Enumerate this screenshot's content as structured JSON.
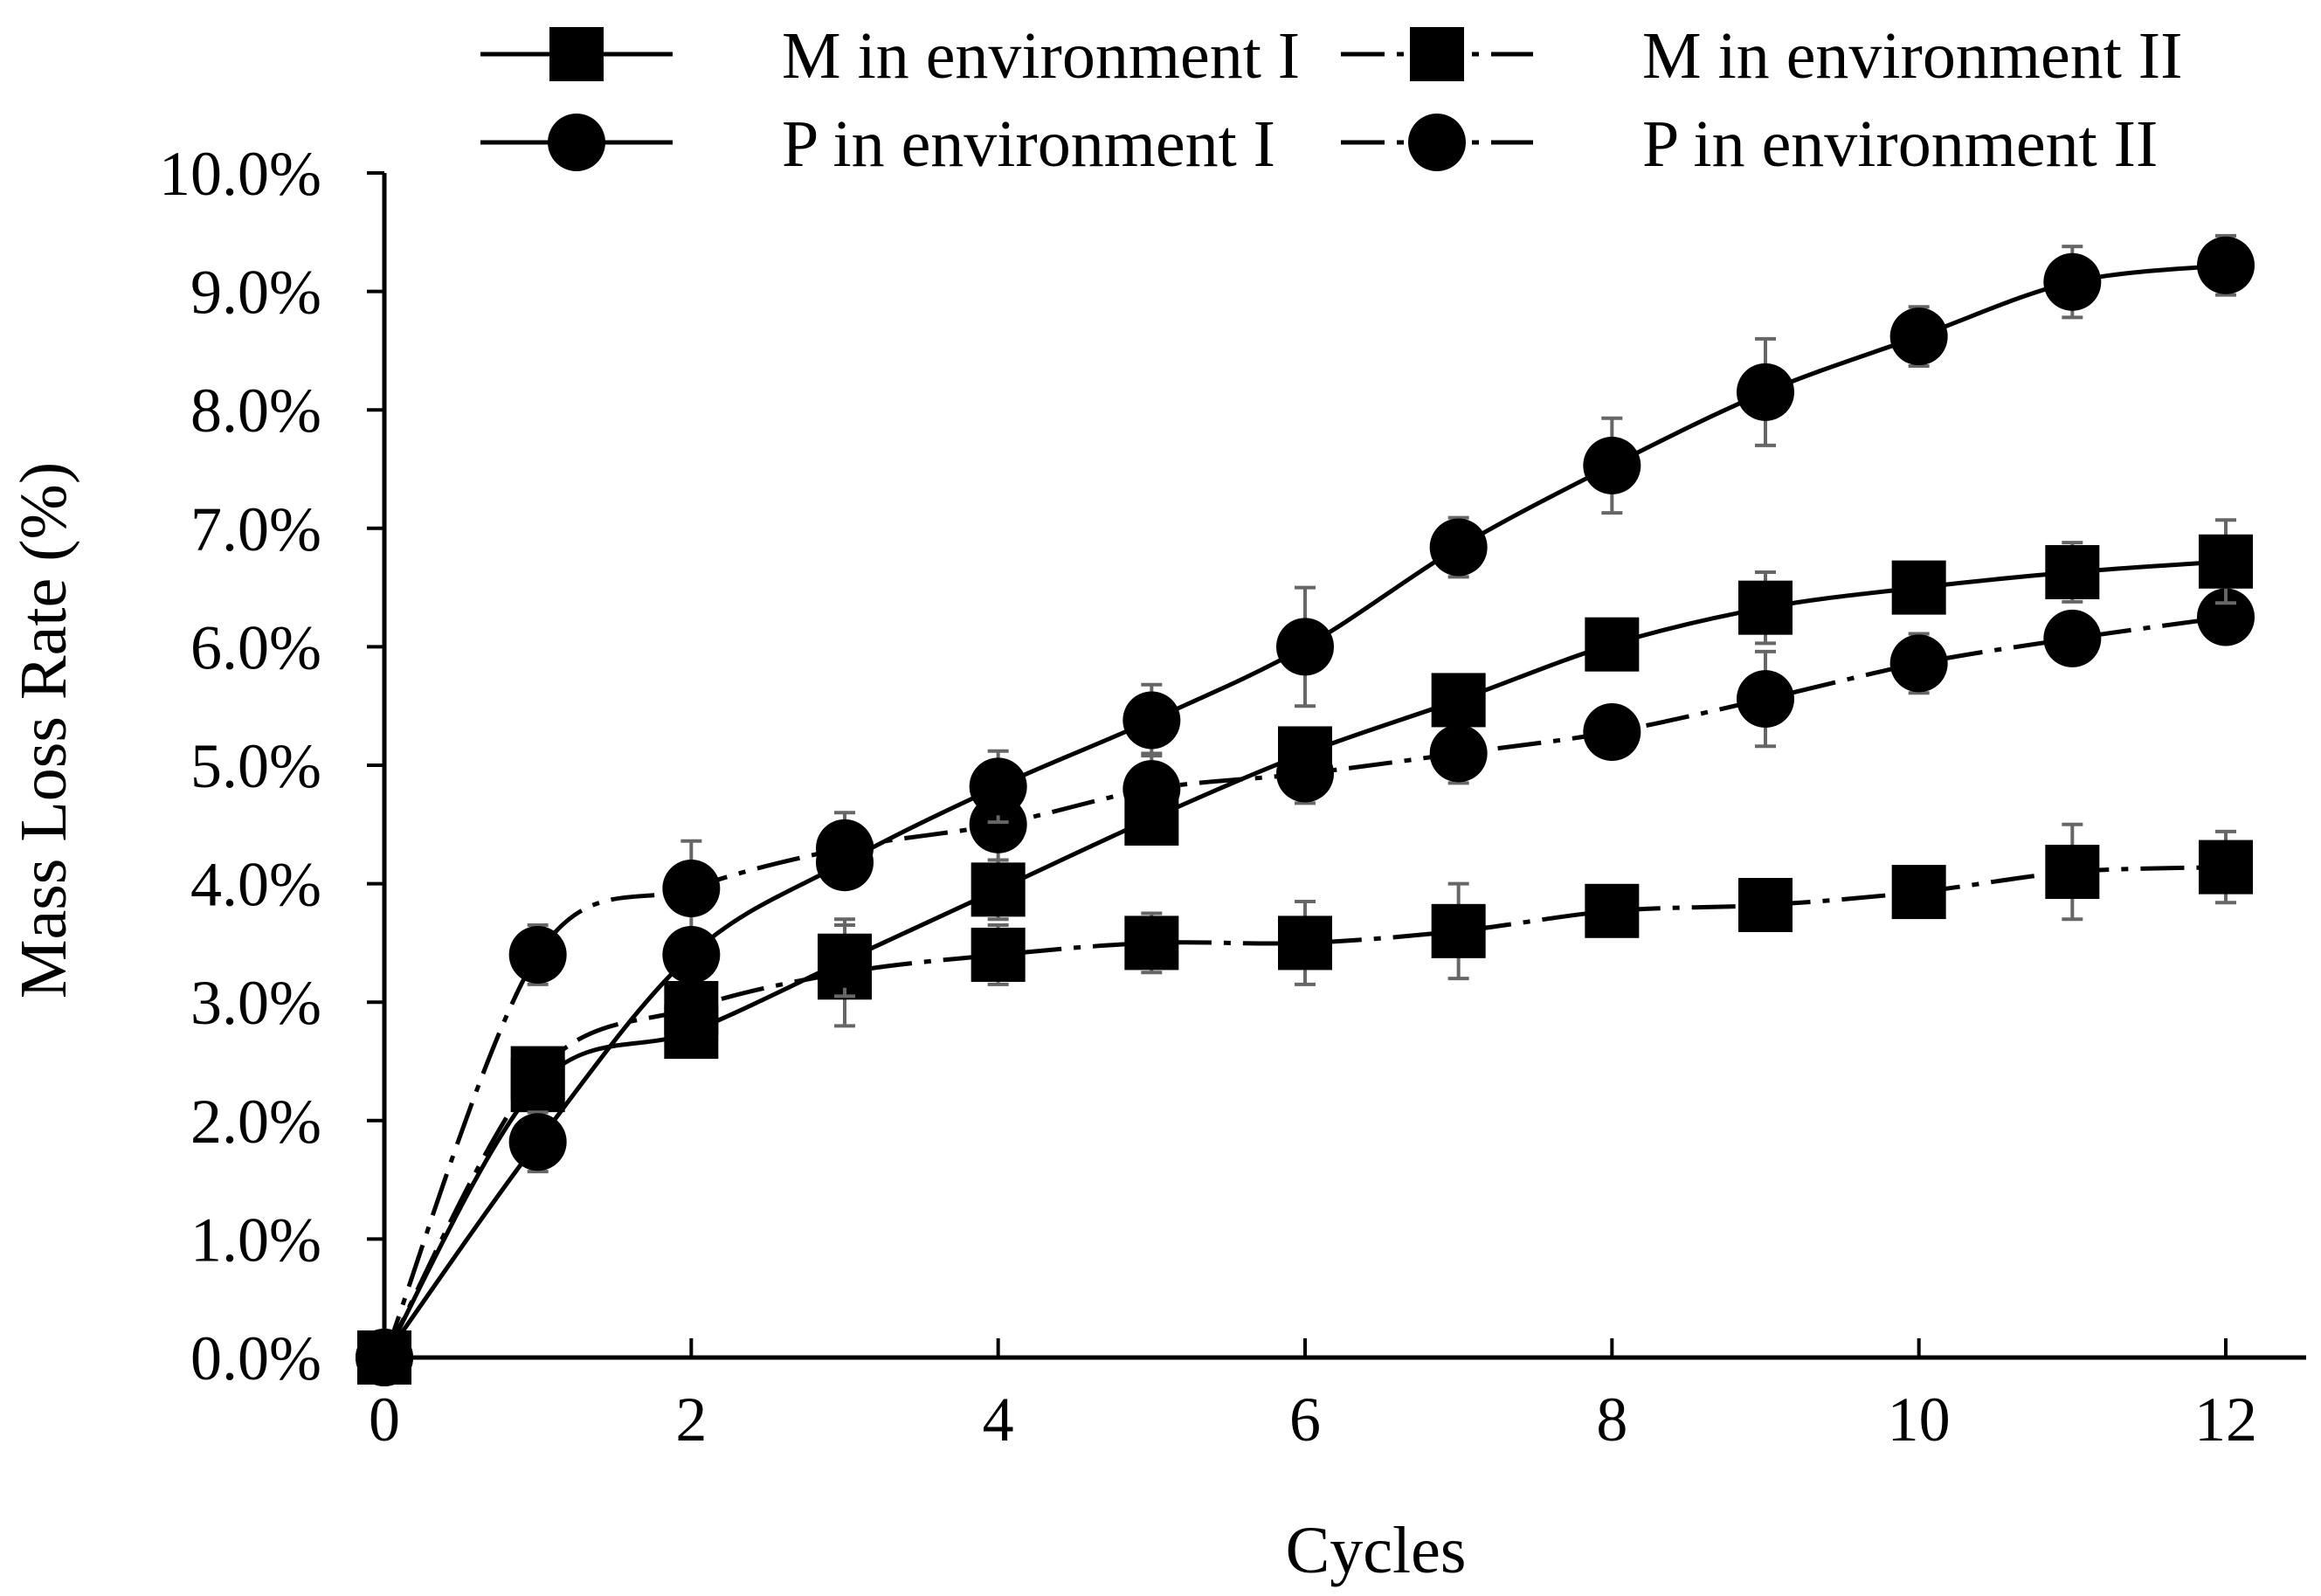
{
  "chart_data": {
    "type": "line",
    "title": "",
    "xlabel": "Cycles",
    "ylabel": "Mass Loss Rate (%)",
    "xlim": [
      0,
      12
    ],
    "ylim": [
      0,
      0.1
    ],
    "x_ticks": [
      0,
      2,
      4,
      6,
      8,
      10,
      12
    ],
    "x_tick_labels": [
      "0",
      "2",
      "4",
      "6",
      "8",
      "10",
      "12"
    ],
    "y_ticks": [
      0,
      0.01,
      0.02,
      0.03,
      0.04,
      0.05,
      0.06,
      0.07,
      0.08,
      0.09,
      0.1
    ],
    "y_tick_labels": [
      "0.0%",
      "1.0%",
      "2.0%",
      "3.0%",
      "4.0%",
      "5.0%",
      "6.0%",
      "7.0%",
      "8.0%",
      "9.0%",
      "10.0%"
    ],
    "grid": false,
    "legend_position": "top",
    "x": [
      0,
      1,
      2,
      3,
      4,
      5,
      6,
      7,
      8,
      9,
      10,
      11,
      12
    ],
    "series": [
      {
        "name": "M in environment I",
        "marker": "square",
        "line_style": "solid",
        "values": [
          0.0,
          0.023,
          0.0275,
          0.0335,
          0.0395,
          0.0455,
          0.051,
          0.0555,
          0.0602,
          0.0633,
          0.065,
          0.0663,
          0.0672
        ],
        "errors": [
          0.0,
          0.0015,
          0.001,
          0.003,
          0.0025,
          0.0015,
          0.002,
          0.001,
          0.0012,
          0.003,
          0.001,
          0.0025,
          0.0035
        ]
      },
      {
        "name": "M in environment II",
        "marker": "square",
        "line_style": "dashdot",
        "values": [
          0.0,
          0.024,
          0.0295,
          0.0325,
          0.034,
          0.035,
          0.035,
          0.036,
          0.0377,
          0.0382,
          0.0393,
          0.041,
          0.0414
        ],
        "errors": [
          0.0,
          0.001,
          0.0012,
          0.0045,
          0.0025,
          0.0025,
          0.0035,
          0.004,
          0.001,
          0.0012,
          0.0015,
          0.004,
          0.003
        ]
      },
      {
        "name": "P in environment I",
        "marker": "circle",
        "line_style": "solid",
        "values": [
          0.0,
          0.0182,
          0.034,
          0.0418,
          0.0482,
          0.0538,
          0.06,
          0.0684,
          0.0753,
          0.0815,
          0.0862,
          0.0908,
          0.0922
        ],
        "errors": [
          0.0,
          0.0025,
          0.002,
          0.002,
          0.003,
          0.003,
          0.005,
          0.0025,
          0.004,
          0.0045,
          0.0025,
          0.003,
          0.0025
        ]
      },
      {
        "name": "P in environment II",
        "marker": "circle",
        "line_style": "dashdot",
        "values": [
          0.0,
          0.034,
          0.0396,
          0.043,
          0.045,
          0.048,
          0.0493,
          0.051,
          0.0528,
          0.0556,
          0.0586,
          0.0607,
          0.0625
        ],
        "errors": [
          0.0,
          0.0025,
          0.004,
          0.003,
          0.0035,
          0.003,
          0.0025,
          0.0025,
          0.0015,
          0.004,
          0.0025,
          0.002,
          0.002
        ]
      }
    ]
  },
  "colors": {
    "line": "#000000",
    "error_bar": "#666666",
    "background": "#ffffff"
  }
}
